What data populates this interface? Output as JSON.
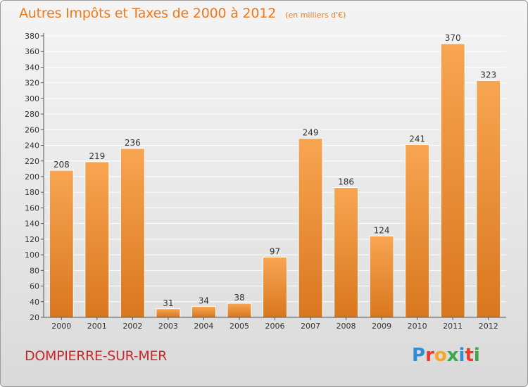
{
  "header": {
    "title": "Autres Impôts et Taxes de 2000 à 2012",
    "subtitle": "(en milliers d'€)"
  },
  "footer": {
    "commune": "DOMPIERRE-SUR-MER",
    "logo_text": "Proxiti",
    "logo_colors": [
      "#2a8fd6",
      "#e8392c",
      "#f5a623",
      "#3aa845",
      "#2a8fd6",
      "#e8392c",
      "#3aa845"
    ]
  },
  "colors": {
    "bar_light": "#f8a552",
    "bar_dark": "#d9771f",
    "title": "#f07818",
    "commune": "#c8282d",
    "axis": "#555555",
    "grid": "#ffffff"
  },
  "chart_data": {
    "type": "bar",
    "title": "Autres Impôts et Taxes de 2000 à 2012",
    "subtitle": "(en milliers d'€)",
    "categories": [
      "2000",
      "2001",
      "2002",
      "2003",
      "2004",
      "2005",
      "2006",
      "2007",
      "2008",
      "2009",
      "2010",
      "2011",
      "2012"
    ],
    "values": [
      208,
      219,
      236,
      31,
      34,
      38,
      97,
      249,
      186,
      124,
      241,
      370,
      323
    ],
    "ylim": [
      20,
      380
    ],
    "yticks": [
      20,
      40,
      60,
      80,
      100,
      120,
      140,
      160,
      180,
      200,
      220,
      240,
      260,
      280,
      300,
      320,
      340,
      360,
      380
    ],
    "grid": true,
    "data_labels": true
  }
}
